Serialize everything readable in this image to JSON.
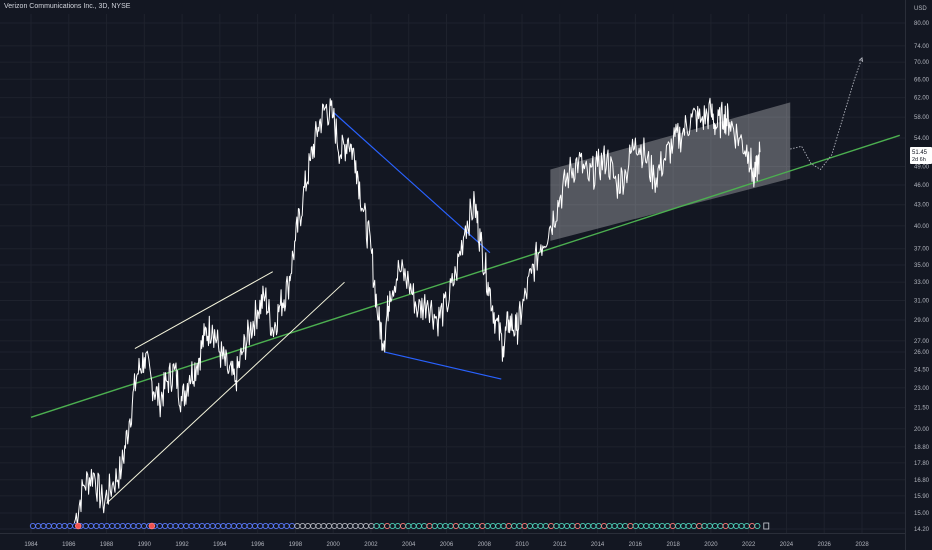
{
  "header": {
    "title": "Verizon Communications Inc., 3D, NYSE"
  },
  "price_badge": {
    "price": "51.45",
    "countdown": "2d 6h"
  },
  "colors": {
    "background": "#131722",
    "price_line": "#ffffff",
    "support_trendline": "#4caf50",
    "blue_lines": "#2962ff",
    "channel_lines": "#f5f5dc",
    "projection_box": "#ffffff"
  },
  "chart_data": {
    "type": "line",
    "y_scale": "log",
    "ylabel": "USD",
    "ylim": [
      14.0,
      82.0
    ],
    "xlim": [
      1984,
      2030
    ],
    "x_ticks": [
      "1984",
      "1986",
      "1988",
      "1990",
      "1992",
      "1994",
      "1996",
      "1998",
      "2000",
      "2002",
      "2004",
      "2006",
      "2008",
      "2010",
      "2012",
      "2014",
      "2016",
      "2018",
      "2020",
      "2022",
      "2024",
      "2026",
      "2028"
    ],
    "y_ticks": [
      "80.00",
      "74.00",
      "70.00",
      "66.00",
      "62.00",
      "58.00",
      "54.00",
      "49.00",
      "46.00",
      "43.00",
      "40.00",
      "37.00",
      "35.00",
      "33.00",
      "31.00",
      "29.00",
      "27.00",
      "26.00",
      "24.50",
      "23.00",
      "21.50",
      "20.00",
      "18.80",
      "17.80",
      "16.80",
      "15.90",
      "15.00",
      "14.20"
    ],
    "series": [
      {
        "type": "line",
        "x": [
          1986.3,
          1986.8,
          1987.3,
          1987.8,
          1988.3,
          1988.8,
          1989.2,
          1989.6,
          1990.0,
          1990.4,
          1990.8,
          1991.2,
          1991.6,
          1992.0,
          1992.4,
          1992.8,
          1993.2,
          1993.6,
          1994.0,
          1994.4,
          1994.8,
          1995.2,
          1995.6,
          1996.0,
          1996.4,
          1996.8,
          1997.2,
          1997.6,
          1998.0,
          1998.4,
          1998.8,
          1999.2,
          1999.6,
          2000.0,
          2000.4,
          2000.8,
          2001.2,
          2001.6,
          2002.0,
          2002.4,
          2002.7,
          2003.0,
          2003.5,
          2004.0,
          2004.5,
          2005.0,
          2005.5,
          2006.0,
          2006.5,
          2007.0,
          2007.5,
          2007.8,
          2008.2,
          2008.6,
          2009.0,
          2009.3,
          2009.7,
          2010.0,
          2010.5,
          2011.0,
          2011.5,
          2012.0,
          2012.5,
          2013.0,
          2013.5,
          2014.0,
          2014.5,
          2015.0,
          2015.5,
          2016.0,
          2016.5,
          2017.0,
          2017.5,
          2018.0,
          2018.5,
          2019.0,
          2019.5,
          2020.0,
          2020.3,
          2020.7,
          2021.0,
          2021.5,
          2022.0,
          2022.3,
          2022.6
        ],
        "values": [
          14.5,
          16.5,
          17.2,
          15.5,
          16.5,
          17.5,
          20.5,
          24.0,
          25.5,
          23.5,
          22.0,
          23.5,
          24.5,
          22.0,
          24.0,
          25.0,
          27.5,
          28.5,
          26.0,
          24.5,
          23.5,
          26.0,
          28.0,
          30.0,
          31.5,
          28.0,
          30.5,
          32.5,
          38.0,
          44.0,
          50.0,
          56.0,
          60.0,
          58.0,
          51.0,
          54.0,
          50.0,
          42.0,
          37.0,
          29.0,
          27.0,
          32.0,
          34.5,
          33.0,
          30.0,
          31.0,
          29.0,
          30.5,
          34.0,
          40.0,
          43.0,
          38.0,
          33.0,
          29.0,
          26.5,
          29.0,
          28.0,
          30.0,
          34.0,
          37.5,
          40.0,
          44.0,
          48.0,
          50.0,
          47.0,
          49.0,
          50.5,
          46.0,
          48.0,
          54.0,
          51.0,
          47.0,
          50.0,
          53.0,
          55.0,
          58.0,
          57.5,
          59.0,
          56.0,
          58.5,
          57.0,
          54.0,
          51.5,
          46.5,
          51.45
        ]
      }
    ],
    "drawings": {
      "support_trendline": {
        "from": [
          1984.0,
          20.8
        ],
        "to": [
          2030.0,
          54.5
        ]
      },
      "channel_upper": {
        "from": [
          1989.5,
          26.3
        ],
        "to": [
          1996.8,
          34.2
        ]
      },
      "channel_lower": {
        "from": [
          1988.0,
          15.5
        ],
        "to": [
          2000.6,
          33.0
        ]
      },
      "blue_upper": {
        "from": [
          2000.0,
          59.0
        ],
        "to": [
          2008.3,
          36.5
        ]
      },
      "blue_lower": {
        "from": [
          2002.7,
          26.0
        ],
        "to": [
          2008.9,
          23.7
        ]
      },
      "projection_box": {
        "x_from": 2011.5,
        "x_to": 2024.2,
        "bottom_left": 38.0,
        "top_left": 48.5,
        "bottom_right": 47.0,
        "top_right": 61.0
      },
      "projection_arrow": [
        [
          2024.2,
          52.0
        ],
        [
          2024.8,
          52.5
        ],
        [
          2025.3,
          49.5
        ],
        [
          2025.8,
          48.5
        ],
        [
          2026.4,
          51.0
        ],
        [
          2027.0,
          58.0
        ],
        [
          2027.6,
          66.0
        ],
        [
          2028.0,
          71.0
        ]
      ]
    }
  }
}
